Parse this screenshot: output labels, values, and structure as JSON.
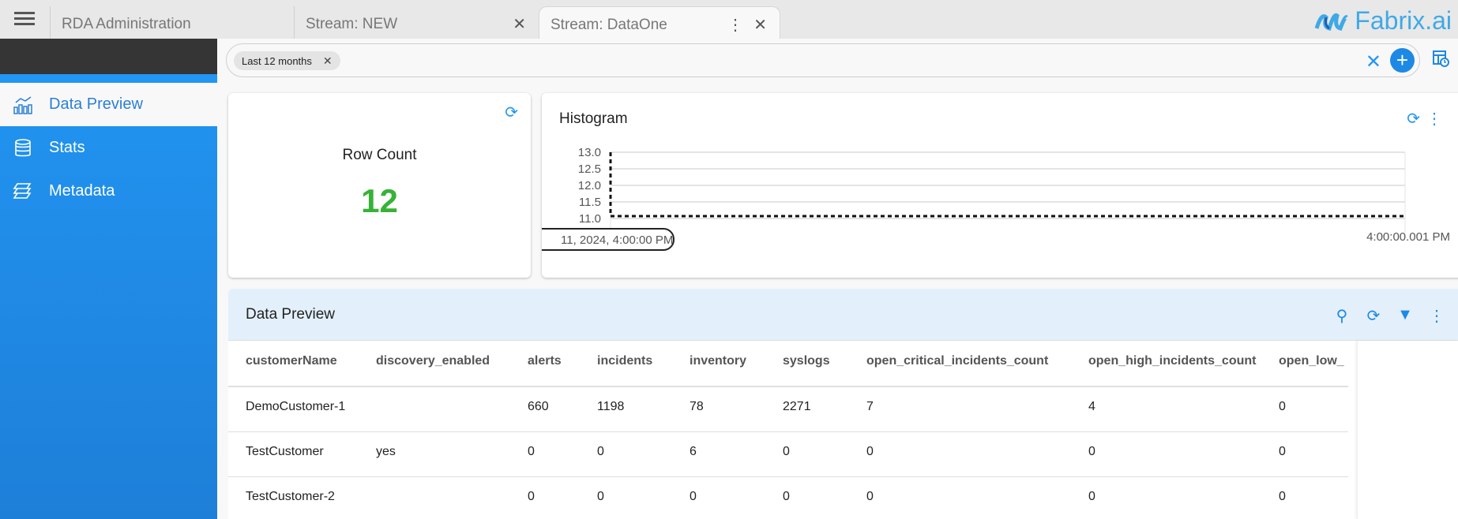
{
  "tabs": [
    {
      "label": "RDA Administration"
    },
    {
      "label": "Stream: NEW"
    },
    {
      "label": "Stream: DataOne",
      "active": true
    }
  ],
  "logo": {
    "text": "Fabrix.ai",
    "color": "#3fa9e6"
  },
  "sidebar": {
    "items": [
      {
        "label": "Data Preview",
        "icon": "chart-icon",
        "active": true
      },
      {
        "label": "Stats",
        "icon": "database-icon"
      },
      {
        "label": "Metadata",
        "icon": "layers-icon"
      }
    ]
  },
  "filter": {
    "chip": "Last 12 months"
  },
  "row_count": {
    "title": "Row Count",
    "value": "12",
    "color": "#36b336"
  },
  "histogram": {
    "title": "Histogram"
  },
  "chart_data": {
    "type": "line",
    "title": "Histogram",
    "y_ticks": [
      "13.0",
      "12.5",
      "12.0",
      "11.5",
      "11.0"
    ],
    "ylim": [
      11,
      13
    ],
    "x_tick_labels": [
      "11, 2024, 4:00:00 PM",
      "4:00:00.001 PM"
    ],
    "series": [
      {
        "points": [
          {
            "x": "11, 2024, 4:00:00 PM",
            "y": 13
          },
          {
            "x": "11, 2024, 4:00:00 PM",
            "y": 11
          },
          {
            "x": "4:00:00.001 PM",
            "y": 11
          }
        ]
      }
    ],
    "grid": true
  },
  "data_preview": {
    "title": "Data Preview",
    "columns": [
      "customerName",
      "discovery_enabled",
      "alerts",
      "incidents",
      "inventory",
      "syslogs",
      "open_critical_incidents_count",
      "open_high_incidents_count",
      "open_low_"
    ],
    "rows": [
      [
        "DemoCustomer-1",
        "",
        "660",
        "1198",
        "78",
        "2271",
        "7",
        "4",
        "0"
      ],
      [
        "TestCustomer",
        "yes",
        "0",
        "0",
        "6",
        "0",
        "0",
        "0",
        "0"
      ],
      [
        "TestCustomer-2",
        "",
        "0",
        "0",
        "0",
        "0",
        "0",
        "0",
        "0"
      ]
    ]
  },
  "accent": "#2196f3"
}
